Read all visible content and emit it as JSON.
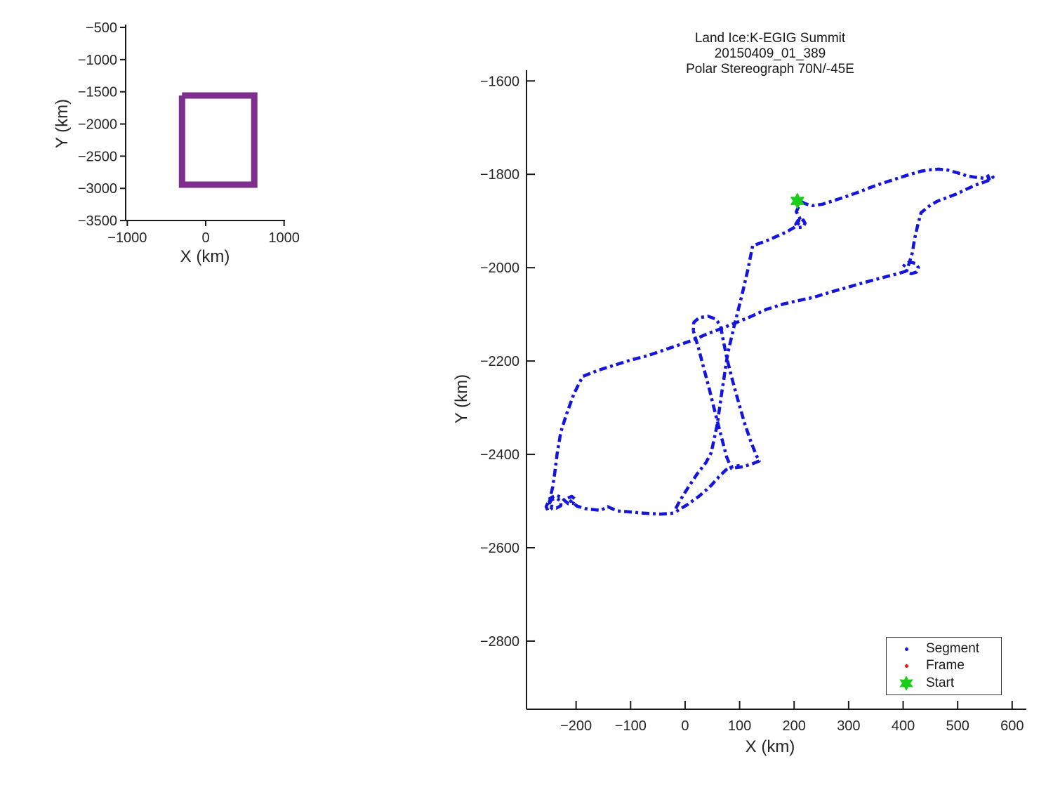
{
  "figure": {
    "background": "#ffffff",
    "text_color": "#262626",
    "axis_color": "#1a1a1a"
  },
  "chart_data": [
    {
      "name": "overview-inset",
      "type": "line",
      "title": "",
      "xlabel": "X (km)",
      "ylabel": "Y (km)",
      "xlim": [
        -1021,
        1012
      ],
      "ylim": [
        -3499,
        -456
      ],
      "grid": false,
      "xticks": {
        "values": [
          -1000,
          0,
          1000
        ],
        "labels": [
          "−1000",
          "0",
          "1000"
        ]
      },
      "yticks": {
        "values": [
          -500,
          -1000,
          -1500,
          -2000,
          -2500,
          -3000,
          -3500
        ],
        "labels": [
          "−500",
          "−1000",
          "−1500",
          "−2000",
          "−2500",
          "−3000",
          "−3500"
        ]
      },
      "series": [
        {
          "name": "coverage-box",
          "color": "#7E2F8E",
          "linewidth": 9,
          "points": [
            [
              -302,
              -1558
            ],
            [
              620,
              -1558
            ],
            [
              620,
              -2943
            ],
            [
              -302,
              -2943
            ],
            [
              -302,
              -1558
            ]
          ]
        }
      ]
    },
    {
      "name": "flight-map",
      "type": "line",
      "title_lines": [
        "Land Ice:K-EGIG Summit",
        "20150409_01_389",
        "Polar Stereograph 70N/-45E"
      ],
      "xlabel": "X (km)",
      "ylabel": "Y (km)",
      "xlim": [
        -291,
        626
      ],
      "ylim": [
        -2946,
        -1577
      ],
      "grid": false,
      "xticks": {
        "values": [
          -200,
          -100,
          0,
          100,
          200,
          300,
          400,
          500,
          600
        ],
        "labels": [
          "−200",
          "−100",
          "0",
          "100",
          "200",
          "300",
          "400",
          "500",
          "600"
        ]
      },
      "yticks": {
        "values": [
          -1600,
          -1800,
          -2000,
          -2200,
          -2400,
          -2600,
          -2800
        ],
        "labels": [
          "−1600",
          "−1800",
          "−2000",
          "−2200",
          "−2400",
          "−2600",
          "−2800"
        ]
      },
      "track_color": "#1414DF",
      "track_linewidth": 4.5,
      "strokes": [
        [
          [
            206,
            -1857
          ],
          [
            209,
            -1868
          ],
          [
            204,
            -1880
          ],
          [
            210,
            -1893
          ],
          [
            213,
            -1902
          ],
          [
            217,
            -1898
          ],
          [
            220,
            -1905
          ],
          [
            216,
            -1913
          ],
          [
            208,
            -1914
          ],
          [
            203,
            -1907
          ],
          [
            207,
            -1899
          ],
          [
            213,
            -1900
          ],
          [
            200,
            -1914
          ],
          [
            185,
            -1924
          ],
          [
            168,
            -1933
          ],
          [
            148,
            -1943
          ],
          [
            124,
            -1953
          ],
          [
            115,
            -2005
          ],
          [
            104,
            -2060
          ],
          [
            90,
            -2125
          ],
          [
            78,
            -2185
          ],
          [
            68,
            -2262
          ],
          [
            59,
            -2335
          ],
          [
            48,
            -2396
          ],
          [
            38,
            -2418
          ],
          [
            22,
            -2442
          ],
          [
            5,
            -2472
          ],
          [
            -10,
            -2500
          ],
          [
            -19,
            -2520
          ]
        ],
        [
          [
            -22,
            -2526
          ],
          [
            -45,
            -2528
          ],
          [
            -76,
            -2526
          ],
          [
            -105,
            -2523
          ],
          [
            -125,
            -2521
          ],
          [
            -142,
            -2512
          ],
          [
            -155,
            -2520
          ],
          [
            -170,
            -2518
          ],
          [
            -184,
            -2516
          ],
          [
            -198,
            -2511
          ],
          [
            -210,
            -2500
          ],
          [
            -216,
            -2494
          ],
          [
            -208,
            -2490
          ],
          [
            -202,
            -2496
          ],
          [
            -206,
            -2505
          ],
          [
            -214,
            -2506
          ],
          [
            -221,
            -2499
          ],
          [
            -227,
            -2492
          ],
          [
            -236,
            -2488
          ],
          [
            -245,
            -2492
          ],
          [
            -249,
            -2501
          ],
          [
            -245,
            -2511
          ],
          [
            -236,
            -2515
          ],
          [
            -228,
            -2510
          ],
          [
            -228,
            -2500
          ],
          [
            -236,
            -2494
          ],
          [
            -245,
            -2497
          ],
          [
            -250,
            -2507
          ],
          [
            -245,
            -2516
          ],
          [
            -252,
            -2520
          ],
          [
            -255,
            -2512
          ],
          [
            -248,
            -2495
          ],
          [
            -243,
            -2470
          ],
          [
            -239,
            -2438
          ],
          [
            -235,
            -2400
          ],
          [
            -228,
            -2352
          ],
          [
            -218,
            -2315
          ],
          [
            -204,
            -2270
          ],
          [
            -188,
            -2233
          ],
          [
            -160,
            -2220
          ],
          [
            -130,
            -2209
          ],
          [
            -100,
            -2198
          ],
          [
            -70,
            -2189
          ],
          [
            -40,
            -2177
          ],
          [
            -10,
            -2165
          ],
          [
            15,
            -2155
          ],
          [
            40,
            -2142
          ],
          [
            65,
            -2131
          ],
          [
            91,
            -2119
          ],
          [
            120,
            -2105
          ],
          [
            150,
            -2089
          ],
          [
            180,
            -2078
          ],
          [
            210,
            -2070
          ],
          [
            237,
            -2063
          ],
          [
            265,
            -2053
          ],
          [
            295,
            -2043
          ],
          [
            325,
            -2033
          ],
          [
            360,
            -2022
          ],
          [
            390,
            -2013
          ],
          [
            404,
            -2008
          ],
          [
            400,
            -1999
          ],
          [
            404,
            -1991
          ],
          [
            413,
            -1988
          ],
          [
            423,
            -1991
          ],
          [
            428,
            -2000
          ],
          [
            425,
            -2009
          ],
          [
            415,
            -2013
          ],
          [
            406,
            -2009
          ],
          [
            417,
            -1968
          ],
          [
            421,
            -1938
          ],
          [
            427,
            -1908
          ],
          [
            433,
            -1882
          ],
          [
            448,
            -1868
          ],
          [
            462,
            -1858
          ],
          [
            478,
            -1851
          ],
          [
            498,
            -1842
          ],
          [
            516,
            -1832
          ],
          [
            533,
            -1823
          ],
          [
            548,
            -1817
          ],
          [
            559,
            -1812
          ],
          [
            565,
            -1806
          ],
          [
            561,
            -1801
          ],
          [
            555,
            -1804
          ],
          [
            558,
            -1810
          ],
          [
            546,
            -1808
          ],
          [
            530,
            -1806
          ],
          [
            516,
            -1803
          ],
          [
            500,
            -1797
          ],
          [
            482,
            -1791
          ],
          [
            465,
            -1789
          ],
          [
            452,
            -1790
          ],
          [
            434,
            -1793
          ],
          [
            410,
            -1801
          ],
          [
            386,
            -1810
          ],
          [
            362,
            -1819
          ],
          [
            338,
            -1829
          ],
          [
            314,
            -1840
          ],
          [
            292,
            -1849
          ],
          [
            271,
            -1857
          ],
          [
            252,
            -1864
          ],
          [
            234,
            -1867
          ],
          [
            220,
            -1863
          ],
          [
            210,
            -1856
          ],
          [
            206,
            -1852
          ]
        ],
        [
          [
            15,
            -2135
          ],
          [
            16,
            -2117
          ],
          [
            26,
            -2107
          ],
          [
            42,
            -2104
          ],
          [
            56,
            -2110
          ],
          [
            65,
            -2124
          ],
          [
            69,
            -2150
          ],
          [
            77,
            -2196
          ],
          [
            87,
            -2242
          ],
          [
            98,
            -2288
          ],
          [
            109,
            -2333
          ],
          [
            121,
            -2374
          ],
          [
            131,
            -2403
          ],
          [
            136,
            -2414
          ],
          [
            122,
            -2421
          ],
          [
            103,
            -2427
          ],
          [
            85,
            -2430
          ],
          [
            76,
            -2405
          ],
          [
            66,
            -2360
          ],
          [
            55,
            -2310
          ],
          [
            44,
            -2258
          ],
          [
            33,
            -2210
          ],
          [
            24,
            -2170
          ],
          [
            17,
            -2143
          ],
          [
            15,
            -2135
          ]
        ],
        [
          [
            -16,
            -2522
          ],
          [
            5,
            -2507
          ],
          [
            25,
            -2490
          ],
          [
            45,
            -2470
          ],
          [
            62,
            -2448
          ],
          [
            75,
            -2433
          ],
          [
            88,
            -2426
          ],
          [
            100,
            -2424
          ]
        ]
      ],
      "start_marker": {
        "x": 206,
        "y": -1857,
        "color": "#19CD19",
        "shape": "hexagram"
      },
      "legend": {
        "position": "bottom-right",
        "items": [
          {
            "label": "Segment",
            "color": "#1414DF",
            "marker": "dot"
          },
          {
            "label": "Frame",
            "color": "#E81717",
            "marker": "dot"
          },
          {
            "label": "Start",
            "color": "#19CD19",
            "marker": "hexagram"
          }
        ]
      }
    }
  ]
}
